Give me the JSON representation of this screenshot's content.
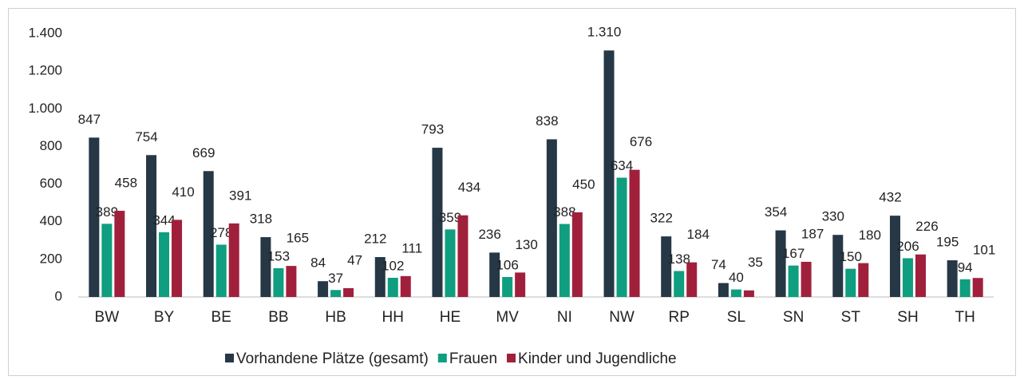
{
  "chart_data": {
    "type": "bar",
    "categories": [
      "BW",
      "BY",
      "BE",
      "BB",
      "HB",
      "HH",
      "HE",
      "MV",
      "NI",
      "NW",
      "RP",
      "SL",
      "SN",
      "ST",
      "SH",
      "TH"
    ],
    "series": [
      {
        "name": "Vorhandene Plätze (gesamt)",
        "color": "#263746",
        "values": [
          847,
          754,
          669,
          318,
          84,
          212,
          793,
          236,
          838,
          1310,
          322,
          74,
          354,
          330,
          432,
          195
        ],
        "value_labels": [
          "847",
          "754",
          "669",
          "318",
          "84",
          "212",
          "793",
          "236",
          "838",
          "1.310",
          "322",
          "74",
          "354",
          "330",
          "432",
          "195"
        ]
      },
      {
        "name": "Frauen",
        "color": "#0f9e7f",
        "values": [
          389,
          344,
          278,
          153,
          37,
          102,
          359,
          106,
          388,
          634,
          138,
          40,
          167,
          150,
          206,
          94
        ]
      },
      {
        "name": "Kinder und Jugendliche",
        "color": "#a0203c",
        "values": [
          458,
          410,
          391,
          165,
          47,
          111,
          434,
          130,
          450,
          676,
          184,
          35,
          187,
          180,
          226,
          101
        ]
      }
    ],
    "ylim": [
      0,
      1400
    ],
    "yticks": [
      0,
      200,
      400,
      600,
      800,
      {
        "value": 1000,
        "label": "1.000"
      },
      {
        "value": 1200,
        "label": "1.200"
      },
      {
        "value": 1400,
        "label": "1.400"
      }
    ],
    "grid": false,
    "legend": "bottom"
  }
}
